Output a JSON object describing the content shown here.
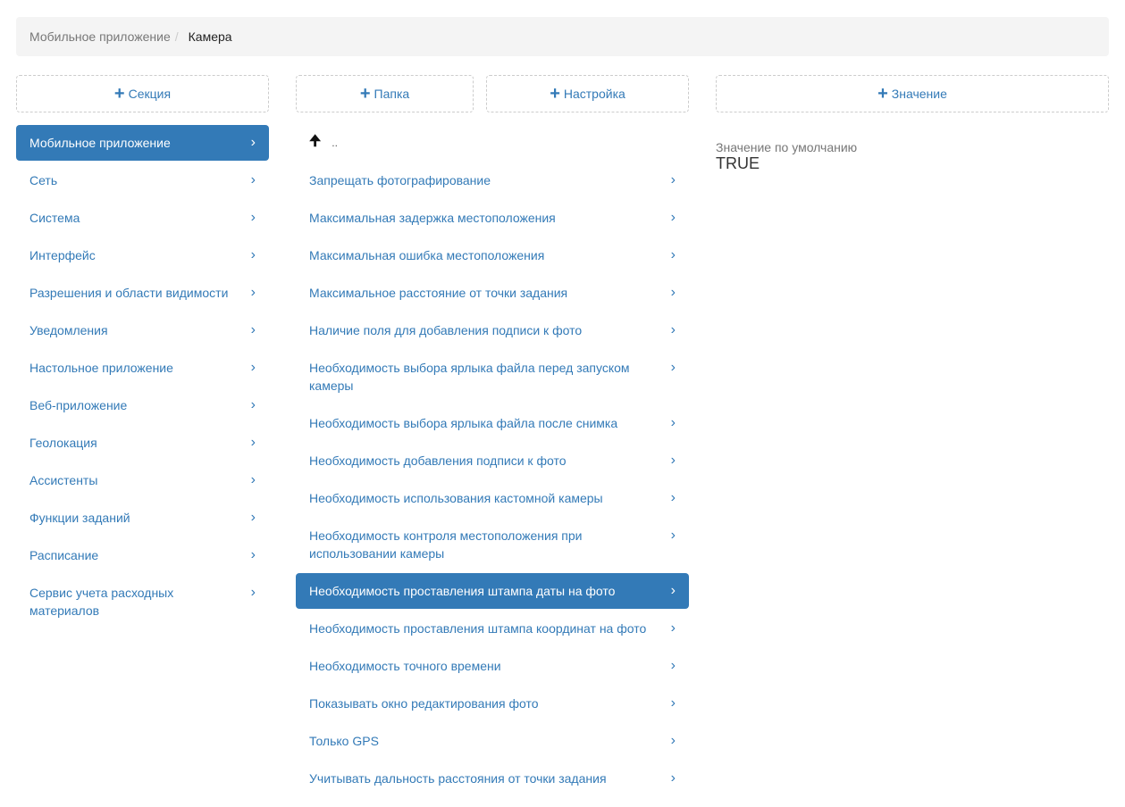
{
  "breadcrumb": {
    "parent": "Мобильное приложение",
    "separator": "/",
    "current": "Камера"
  },
  "buttons": {
    "section": "Секция",
    "folder": "Папка",
    "setting": "Настройка",
    "value": "Значение",
    "plus_icon": "+"
  },
  "sections": [
    {
      "label": "Мобильное приложение",
      "active": true
    },
    {
      "label": "Сеть"
    },
    {
      "label": "Система"
    },
    {
      "label": "Интерфейс"
    },
    {
      "label": "Разрешения и области видимости"
    },
    {
      "label": "Уведомления"
    },
    {
      "label": "Настольное приложение"
    },
    {
      "label": "Веб-приложение"
    },
    {
      "label": "Геолокация"
    },
    {
      "label": "Ассистенты"
    },
    {
      "label": "Функции заданий"
    },
    {
      "label": "Расписание"
    },
    {
      "label": "Сервис учета расходных материалов"
    }
  ],
  "up": {
    "arrow": "🠉",
    "label": ".."
  },
  "settings": [
    {
      "label": "Запрещать фотографирование"
    },
    {
      "label": "Максимальная задержка местоположения"
    },
    {
      "label": "Максимальная ошибка местоположения"
    },
    {
      "label": "Максимальное расстояние от точки задания"
    },
    {
      "label": "Наличие поля для добавления подписи к фото"
    },
    {
      "label": "Необходимость выбора ярлыка файла перед запуском камеры"
    },
    {
      "label": "Необходимость выбора ярлыка файла после снимка"
    },
    {
      "label": "Необходимость добавления подписи к фото"
    },
    {
      "label": "Необходимость использования кастомной камеры"
    },
    {
      "label": "Необходимость контроля местоположения при использовании камеры"
    },
    {
      "label": "Необходимость проставления штампа даты на фото",
      "active": true
    },
    {
      "label": "Необходимость проставления штампа координат на фото"
    },
    {
      "label": "Необходимость точного времени"
    },
    {
      "label": "Показывать окно редактирования фото"
    },
    {
      "label": "Только GPS"
    },
    {
      "label": "Учитывать дальность расстояния от точки задания"
    }
  ],
  "detail": {
    "label": "Значение по умолчанию",
    "value": "TRUE"
  },
  "chevron": "›",
  "colors": {
    "accent": "#337ab7",
    "breadcrumb_bg": "#f4f4f4"
  }
}
